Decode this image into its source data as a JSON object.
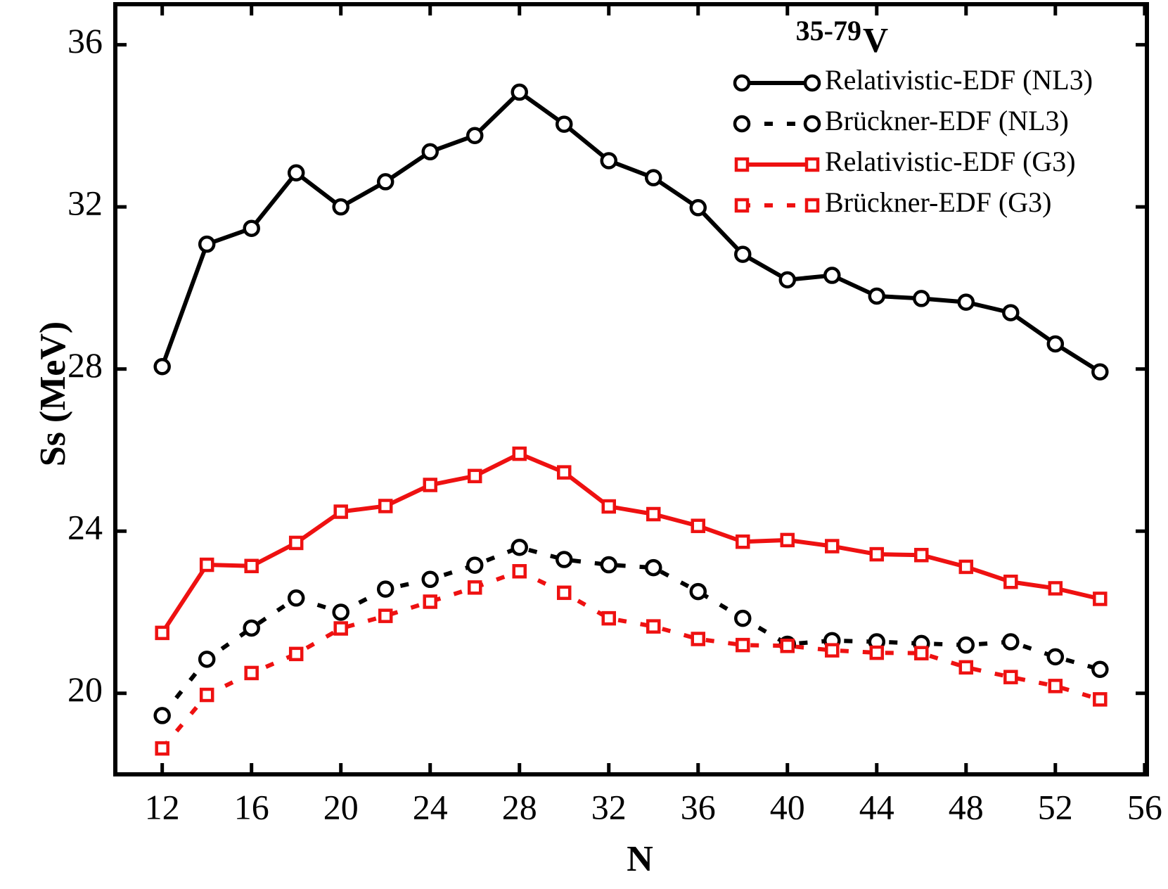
{
  "chart_data": {
    "type": "line",
    "annotation_superscript": "35-79",
    "annotation": "V",
    "xlabel": "N",
    "ylabel": "Ss (MeV)",
    "x": [
      12,
      14,
      16,
      18,
      20,
      22,
      24,
      26,
      28,
      30,
      32,
      34,
      36,
      38,
      40,
      42,
      44,
      46,
      48,
      50,
      52,
      54
    ],
    "xlim": [
      9.9,
      56.1
    ],
    "xticks": [
      12,
      16,
      20,
      24,
      28,
      32,
      36,
      40,
      44,
      48,
      52,
      56
    ],
    "ylim": [
      18,
      37
    ],
    "yticks": [
      20,
      24,
      28,
      32,
      36
    ],
    "grid": false,
    "legend": "upper right",
    "series": [
      {
        "name": "Relativistic-EDF (NL3)",
        "color": "#000000",
        "style": "solid",
        "marker": "circle",
        "values": [
          28.06,
          31.08,
          31.47,
          32.84,
          32.0,
          32.62,
          33.36,
          33.76,
          34.83,
          34.04,
          33.14,
          32.72,
          31.98,
          30.83,
          30.2,
          30.31,
          29.8,
          29.74,
          29.65,
          29.39,
          28.62,
          27.93
        ]
      },
      {
        "name": "Brückner-EDF (NL3)",
        "color": "#000000",
        "style": "dotted",
        "marker": "circle",
        "values": [
          19.45,
          20.84,
          21.61,
          22.35,
          22.0,
          22.57,
          22.81,
          23.16,
          23.6,
          23.3,
          23.17,
          23.1,
          22.51,
          21.85,
          21.21,
          21.3,
          21.27,
          21.23,
          21.19,
          21.27,
          20.9,
          20.59
        ]
      },
      {
        "name": "Relativistic-EDF (G3)",
        "color": "#ee1111",
        "style": "solid",
        "marker": "square",
        "values": [
          21.49,
          23.17,
          23.14,
          23.71,
          24.48,
          24.62,
          25.14,
          25.36,
          25.91,
          25.45,
          24.61,
          24.42,
          24.13,
          23.74,
          23.78,
          23.63,
          23.43,
          23.41,
          23.12,
          22.75,
          22.59,
          22.33
        ]
      },
      {
        "name": "Brückner-EDF (G3)",
        "color": "#ee1111",
        "style": "dotted",
        "marker": "square",
        "values": [
          18.64,
          19.96,
          20.5,
          20.97,
          21.6,
          21.91,
          22.26,
          22.61,
          23.01,
          22.48,
          21.85,
          21.65,
          21.34,
          21.19,
          21.17,
          21.06,
          21.0,
          20.99,
          20.64,
          20.4,
          20.18,
          19.85
        ]
      }
    ]
  }
}
